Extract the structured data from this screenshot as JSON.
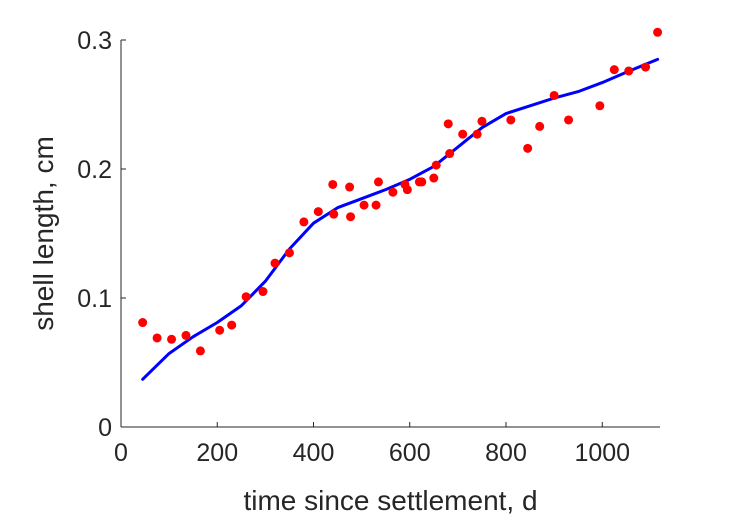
{
  "chart_data": {
    "type": "scatter",
    "title": "",
    "xlabel": "time since settlement, d",
    "ylabel": "shell length, cm",
    "xlim": [
      0,
      1120
    ],
    "ylim": [
      0,
      0.3
    ],
    "xticks": [
      0,
      200,
      400,
      600,
      800,
      1000
    ],
    "xtick_labels": [
      "0",
      "200",
      "400",
      "600",
      "800",
      "1000"
    ],
    "yticks": [
      0,
      0.1,
      0.2,
      0.3
    ],
    "ytick_labels": [
      "0",
      "0.1",
      "0.2",
      "0.3"
    ],
    "grid": false,
    "legend": "none",
    "box": "left-bottom axes only",
    "series": [
      {
        "kind": "scatter",
        "color": "#ff0000",
        "x": [
          45,
          75,
          105,
          135,
          165,
          205,
          230,
          260,
          295,
          320,
          350,
          380,
          410,
          440,
          442,
          475,
          477,
          505,
          530,
          535,
          565,
          590,
          595,
          620,
          625,
          650,
          655,
          680,
          683,
          710,
          740,
          750,
          810,
          845,
          870,
          900,
          930,
          995,
          1025,
          1055,
          1090,
          1115
        ],
        "y": [
          0.081,
          0.069,
          0.068,
          0.071,
          0.059,
          0.075,
          0.079,
          0.101,
          0.105,
          0.127,
          0.135,
          0.159,
          0.167,
          0.188,
          0.165,
          0.186,
          0.163,
          0.172,
          0.172,
          0.19,
          0.182,
          0.188,
          0.184,
          0.19,
          0.19,
          0.193,
          0.203,
          0.235,
          0.212,
          0.227,
          0.227,
          0.237,
          0.238,
          0.216,
          0.233,
          0.257,
          0.238,
          0.249,
          0.277,
          0.276,
          0.279,
          0.306
        ]
      },
      {
        "kind": "line",
        "color": "#0000ff",
        "x": [
          45,
          100,
          150,
          200,
          250,
          300,
          350,
          400,
          450,
          500,
          550,
          600,
          650,
          700,
          750,
          800,
          850,
          900,
          950,
          1000,
          1050,
          1115
        ],
        "y": [
          0.037,
          0.057,
          0.07,
          0.081,
          0.094,
          0.113,
          0.138,
          0.158,
          0.17,
          0.177,
          0.184,
          0.192,
          0.202,
          0.217,
          0.232,
          0.243,
          0.249,
          0.255,
          0.26,
          0.267,
          0.275,
          0.285
        ]
      }
    ]
  }
}
